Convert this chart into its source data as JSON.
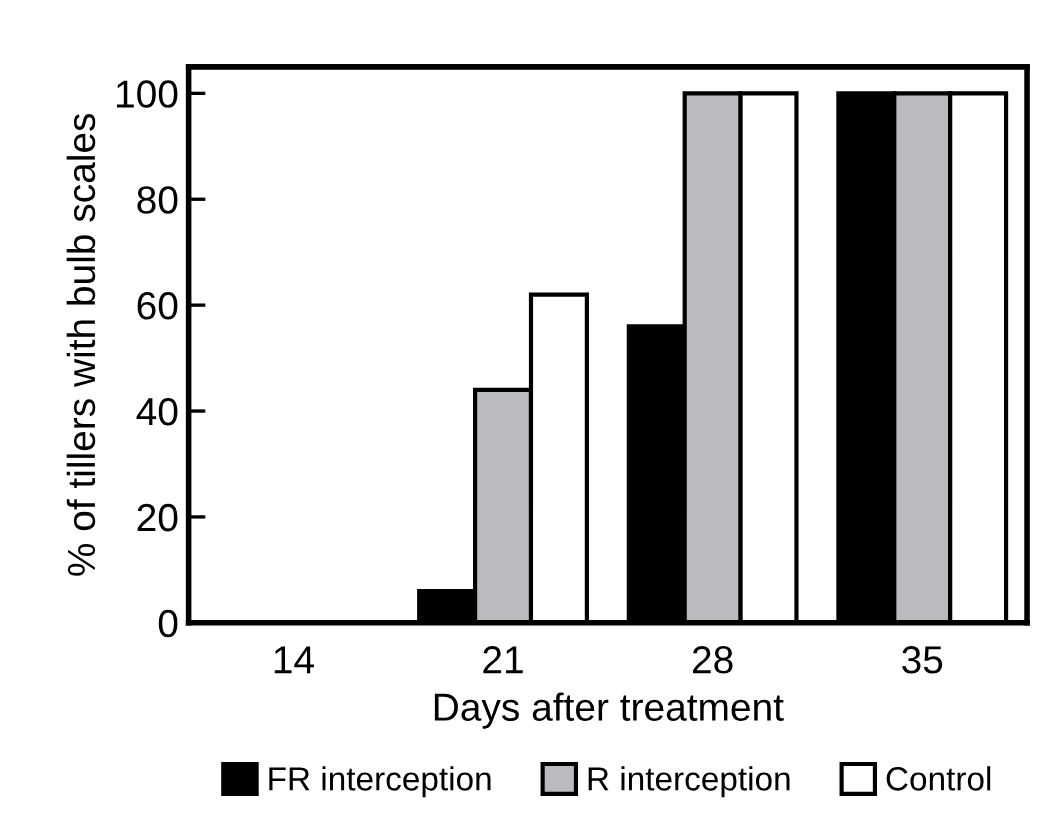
{
  "chart_data": {
    "type": "bar",
    "xlabel": "Days after treatment",
    "ylabel": "% of tillers with bulb scales",
    "categories": [
      "14",
      "21",
      "28",
      "35"
    ],
    "series": [
      {
        "name": "FR interception",
        "color": "#000000",
        "values": [
          0,
          6,
          56,
          100
        ]
      },
      {
        "name": "R interception",
        "color": "#bbbbbf",
        "values": [
          0,
          44,
          100,
          100
        ]
      },
      {
        "name": "Control",
        "color": "#ffffff",
        "values": [
          0,
          62,
          100,
          100
        ]
      }
    ],
    "ylim": [
      0,
      105
    ],
    "yticks": [
      0,
      20,
      40,
      60,
      80,
      100
    ],
    "grid": false,
    "legend": "bottom"
  }
}
